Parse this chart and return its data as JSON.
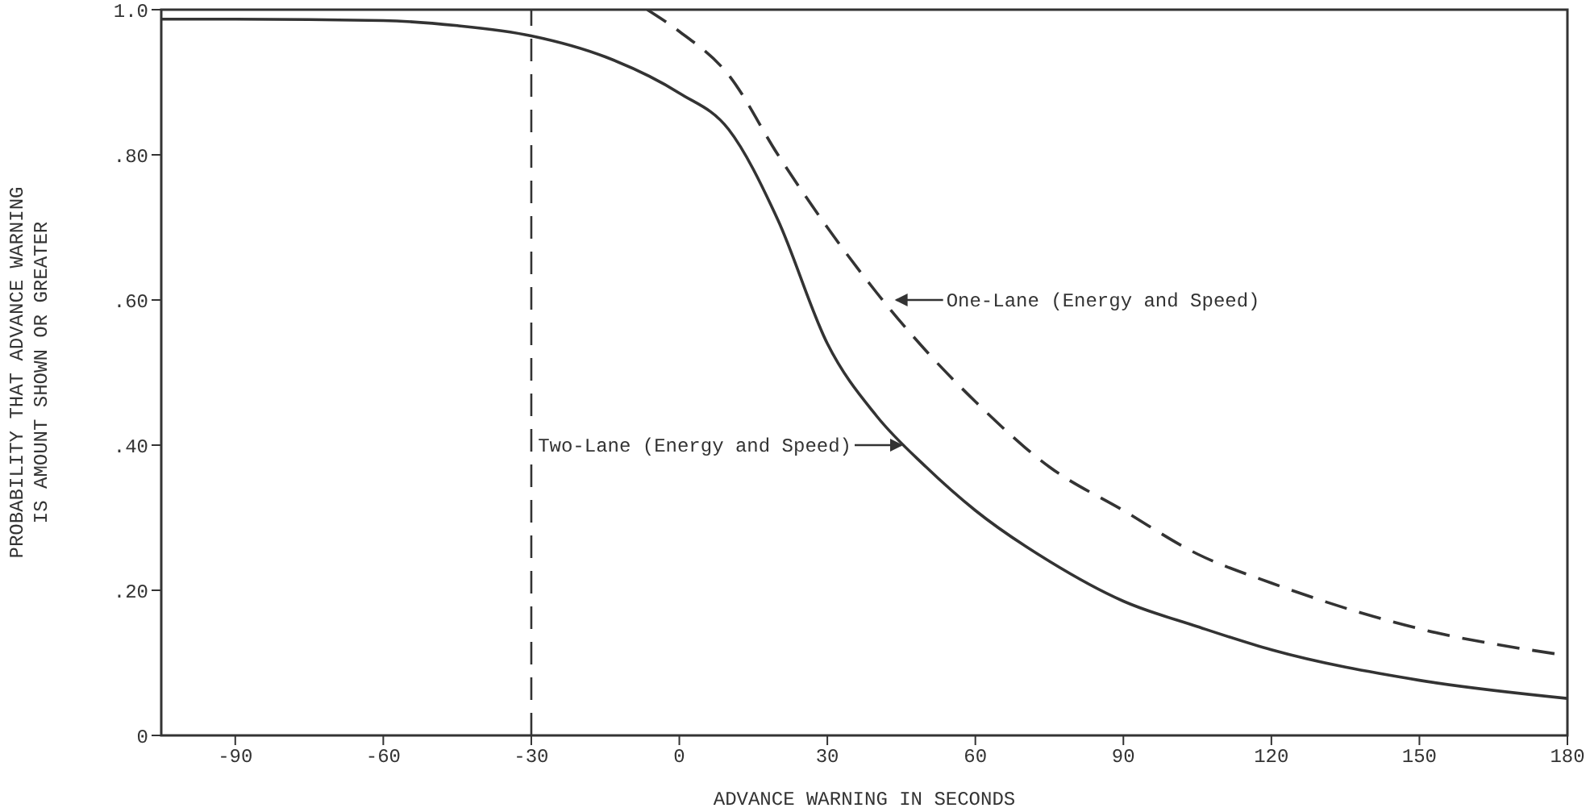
{
  "chart_data": {
    "type": "line",
    "xlabel": "ADVANCE WARNING IN SECONDS",
    "ylabel": "PROBABILITY THAT ADVANCE WARNING\nIS AMOUNT SHOWN OR GREATER",
    "xlim": [
      -105,
      180
    ],
    "xticks": [
      -90,
      -60,
      -30,
      0,
      30,
      60,
      90,
      120,
      150,
      180
    ],
    "ylim": [
      0,
      1
    ],
    "yticks": [
      0,
      {
        "value": 0.2,
        "label": ".20"
      },
      {
        "value": 0.4,
        "label": ".40"
      },
      {
        "value": 0.6,
        "label": ".60"
      },
      {
        "value": 0.8,
        "label": ".80"
      },
      {
        "value": 1,
        "label": "1.0"
      }
    ],
    "grid": false,
    "series": [
      {
        "color": "#333333",
        "line_style": "solid",
        "x": [
          -105,
          -90,
          -60,
          -45,
          -30,
          -15,
          0,
          10,
          20,
          30,
          40,
          50,
          60,
          75,
          90,
          105,
          120,
          150,
          180
        ],
        "values": [
          0.987,
          0.987,
          0.985,
          0.978,
          0.964,
          0.935,
          0.885,
          0.835,
          0.71,
          0.54,
          0.44,
          0.37,
          0.31,
          0.24,
          0.185,
          0.15,
          0.118,
          0.076,
          0.051
        ]
      },
      {
        "color": "#333333",
        "line_style": "dashed",
        "x": [
          -6.5,
          0,
          10,
          20,
          30,
          40,
          50,
          60,
          75,
          90,
          105,
          120,
          150,
          180
        ],
        "values": [
          1,
          0.97,
          0.91,
          0.8,
          0.7,
          0.61,
          0.53,
          0.46,
          0.37,
          0.31,
          0.25,
          0.21,
          0.147,
          0.11
        ]
      }
    ],
    "ref_lines": [
      {
        "axis": "x",
        "value": -30,
        "line_style": "dashed",
        "color": "#333333"
      }
    ],
    "annotations": [
      {
        "text": "One-Lane (Energy and Speed)",
        "x": 43,
        "y": 0.6
      },
      {
        "text": "Two-Lane (Energy and Speed)",
        "x": 46,
        "y": 0.4
      }
    ]
  }
}
